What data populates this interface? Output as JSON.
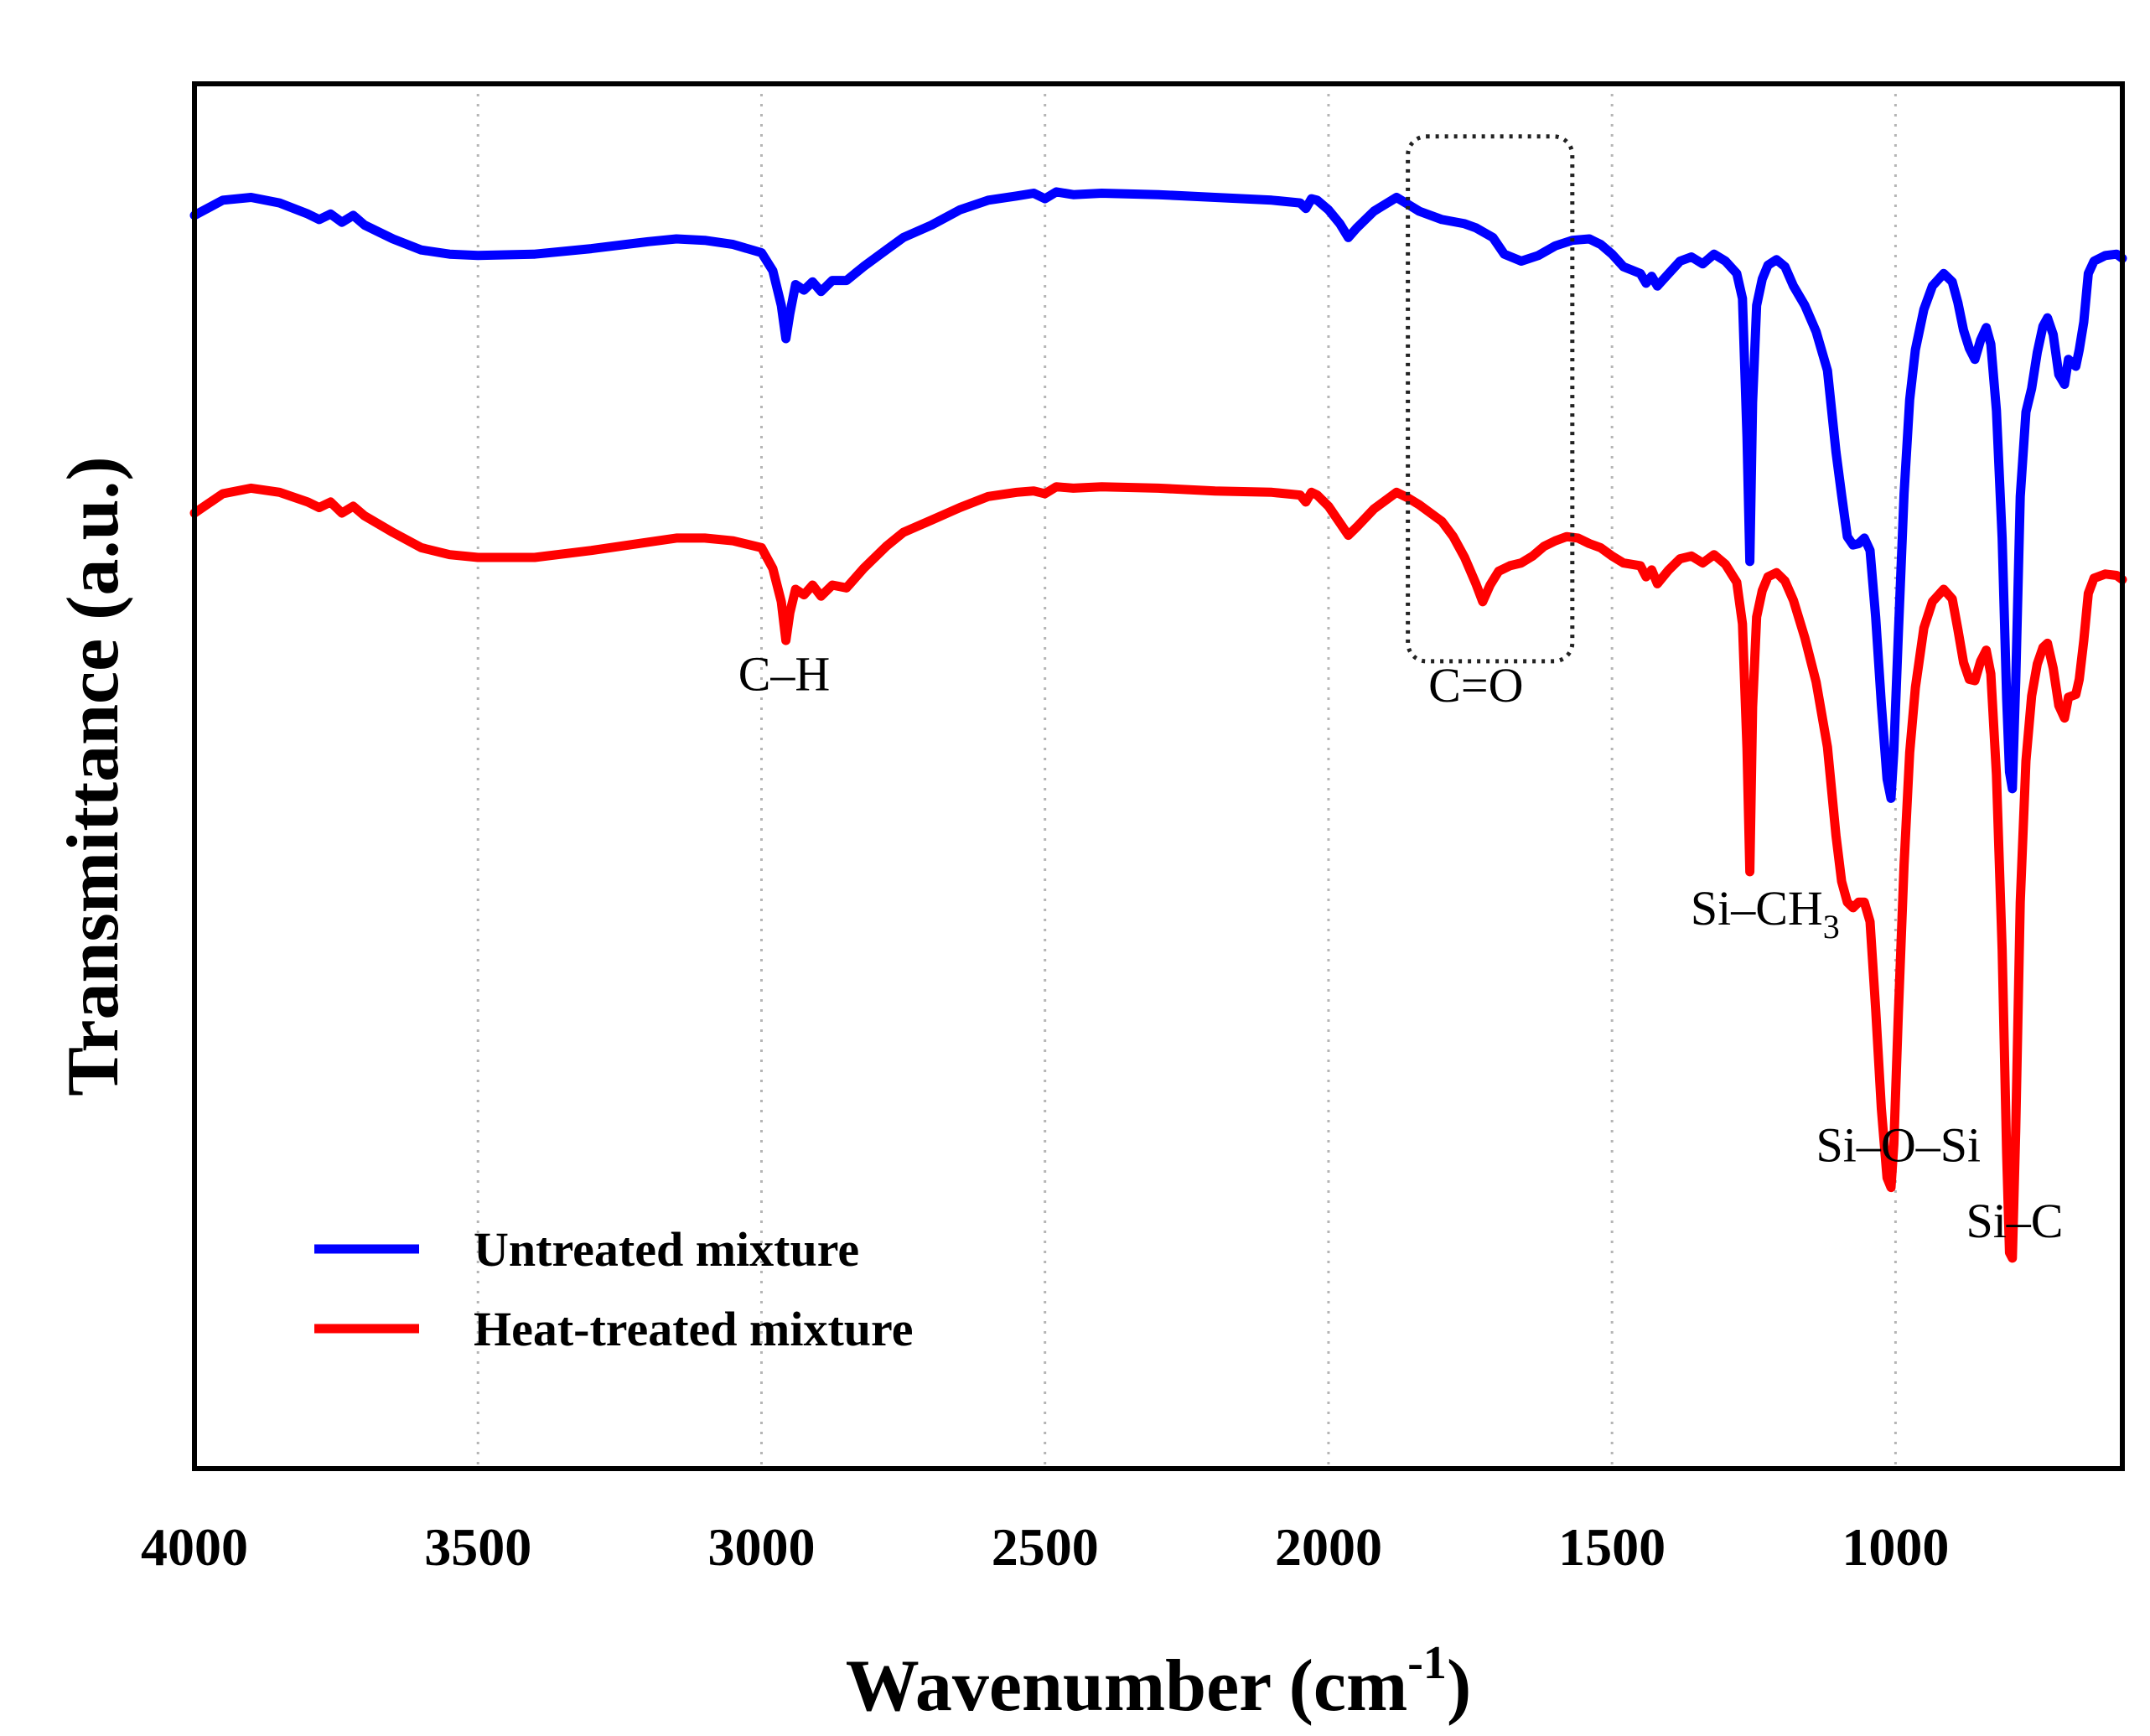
{
  "chart_data": {
    "type": "line",
    "title": "",
    "xlabel": "Wavenumber (cm",
    "xlabel_sup": "-1",
    "xlabel_close": ")",
    "ylabel": "Transmittance (a.u.)",
    "xlim": [
      4000,
      600
    ],
    "ylim": [
      0,
      100
    ],
    "x_reversed": true,
    "grid": "vertical dotted",
    "x_ticks": [
      4000,
      3500,
      3000,
      2500,
      2000,
      1500,
      1000
    ],
    "x_tick_labels": [
      "4000",
      "3500",
      "3000",
      "2500",
      "2000",
      "1500",
      "1000"
    ],
    "legend_position": "bottom-left",
    "series": [
      {
        "name": "Untreated mixture",
        "color": "#0000ff",
        "points": [
          [
            4000,
            90.5
          ],
          [
            3950,
            91.6
          ],
          [
            3900,
            91.8
          ],
          [
            3850,
            91.4
          ],
          [
            3800,
            90.6
          ],
          [
            3780,
            90.2
          ],
          [
            3760,
            90.6
          ],
          [
            3740,
            90.0
          ],
          [
            3720,
            90.5
          ],
          [
            3700,
            89.8
          ],
          [
            3650,
            88.8
          ],
          [
            3600,
            88.0
          ],
          [
            3550,
            87.7
          ],
          [
            3500,
            87.6
          ],
          [
            3400,
            87.7
          ],
          [
            3300,
            88.1
          ],
          [
            3200,
            88.6
          ],
          [
            3150,
            88.8
          ],
          [
            3100,
            88.7
          ],
          [
            3050,
            88.4
          ],
          [
            3000,
            87.8
          ],
          [
            2980,
            86.5
          ],
          [
            2965,
            84.0
          ],
          [
            2957,
            81.6
          ],
          [
            2950,
            83.4
          ],
          [
            2940,
            85.5
          ],
          [
            2925,
            85.1
          ],
          [
            2910,
            85.7
          ],
          [
            2895,
            85.0
          ],
          [
            2875,
            85.8
          ],
          [
            2850,
            85.8
          ],
          [
            2820,
            86.8
          ],
          [
            2780,
            88.0
          ],
          [
            2750,
            88.9
          ],
          [
            2700,
            89.8
          ],
          [
            2650,
            90.9
          ],
          [
            2600,
            91.6
          ],
          [
            2550,
            91.9
          ],
          [
            2520,
            92.1
          ],
          [
            2500,
            91.7
          ],
          [
            2480,
            92.2
          ],
          [
            2450,
            92.0
          ],
          [
            2400,
            92.1
          ],
          [
            2300,
            92.0
          ],
          [
            2200,
            91.8
          ],
          [
            2100,
            91.6
          ],
          [
            2050,
            91.4
          ],
          [
            2040,
            91.0
          ],
          [
            2030,
            91.7
          ],
          [
            2020,
            91.6
          ],
          [
            2000,
            90.9
          ],
          [
            1980,
            89.9
          ],
          [
            1965,
            88.9
          ],
          [
            1950,
            89.6
          ],
          [
            1920,
            90.8
          ],
          [
            1880,
            91.8
          ],
          [
            1860,
            91.3
          ],
          [
            1840,
            90.8
          ],
          [
            1800,
            90.2
          ],
          [
            1760,
            89.9
          ],
          [
            1740,
            89.6
          ],
          [
            1710,
            88.9
          ],
          [
            1690,
            87.7
          ],
          [
            1660,
            87.2
          ],
          [
            1630,
            87.6
          ],
          [
            1600,
            88.3
          ],
          [
            1570,
            88.7
          ],
          [
            1540,
            88.8
          ],
          [
            1520,
            88.4
          ],
          [
            1500,
            87.7
          ],
          [
            1480,
            86.8
          ],
          [
            1450,
            86.3
          ],
          [
            1440,
            85.6
          ],
          [
            1430,
            86.1
          ],
          [
            1420,
            85.4
          ],
          [
            1400,
            86.3
          ],
          [
            1380,
            87.2
          ],
          [
            1360,
            87.5
          ],
          [
            1340,
            87.0
          ],
          [
            1320,
            87.7
          ],
          [
            1300,
            87.2
          ],
          [
            1280,
            86.3
          ],
          [
            1270,
            84.5
          ],
          [
            1262,
            74.5
          ],
          [
            1257,
            65.5
          ],
          [
            1252,
            77.0
          ],
          [
            1245,
            84.0
          ],
          [
            1235,
            85.9
          ],
          [
            1225,
            86.9
          ],
          [
            1210,
            87.3
          ],
          [
            1195,
            86.8
          ],
          [
            1180,
            85.4
          ],
          [
            1160,
            84.0
          ],
          [
            1140,
            82.1
          ],
          [
            1120,
            79.3
          ],
          [
            1105,
            73.4
          ],
          [
            1095,
            70.3
          ],
          [
            1085,
            67.3
          ],
          [
            1075,
            66.7
          ],
          [
            1065,
            66.8
          ],
          [
            1055,
            67.2
          ],
          [
            1045,
            66.3
          ],
          [
            1035,
            61.5
          ],
          [
            1025,
            55.2
          ],
          [
            1015,
            49.8
          ],
          [
            1008,
            48.4
          ],
          [
            1003,
            51.8
          ],
          [
            995,
            60.3
          ],
          [
            985,
            70.4
          ],
          [
            975,
            77.2
          ],
          [
            965,
            80.8
          ],
          [
            950,
            83.7
          ],
          [
            935,
            85.4
          ],
          [
            915,
            86.3
          ],
          [
            900,
            85.7
          ],
          [
            890,
            84.2
          ],
          [
            880,
            82.2
          ],
          [
            870,
            80.9
          ],
          [
            860,
            80.1
          ],
          [
            850,
            81.5
          ],
          [
            840,
            82.4
          ],
          [
            832,
            81.2
          ],
          [
            822,
            76.4
          ],
          [
            812,
            67.2
          ],
          [
            804,
            55.6
          ],
          [
            799,
            50.3
          ],
          [
            794,
            49.1
          ],
          [
            788,
            56.8
          ],
          [
            780,
            70.2
          ],
          [
            770,
            76.3
          ],
          [
            760,
            78.0
          ],
          [
            750,
            80.6
          ],
          [
            740,
            82.5
          ],
          [
            732,
            83.1
          ],
          [
            722,
            81.9
          ],
          [
            712,
            79.0
          ],
          [
            702,
            78.3
          ],
          [
            695,
            80.1
          ],
          [
            682,
            79.6
          ],
          [
            676,
            80.8
          ],
          [
            668,
            82.8
          ],
          [
            660,
            86.3
          ],
          [
            650,
            87.2
          ],
          [
            630,
            87.6
          ],
          [
            610,
            87.7
          ],
          [
            600,
            87.4
          ]
        ]
      },
      {
        "name": "Heat-treated mixture",
        "color": "#ff0000",
        "points": [
          [
            4000,
            69.0
          ],
          [
            3950,
            70.4
          ],
          [
            3900,
            70.8
          ],
          [
            3850,
            70.5
          ],
          [
            3800,
            69.8
          ],
          [
            3780,
            69.4
          ],
          [
            3760,
            69.8
          ],
          [
            3740,
            69.0
          ],
          [
            3720,
            69.5
          ],
          [
            3700,
            68.8
          ],
          [
            3650,
            67.6
          ],
          [
            3600,
            66.5
          ],
          [
            3550,
            66.0
          ],
          [
            3500,
            65.8
          ],
          [
            3400,
            65.8
          ],
          [
            3300,
            66.3
          ],
          [
            3200,
            66.9
          ],
          [
            3150,
            67.2
          ],
          [
            3100,
            67.2
          ],
          [
            3050,
            67.0
          ],
          [
            3000,
            66.5
          ],
          [
            2980,
            65.0
          ],
          [
            2965,
            62.6
          ],
          [
            2957,
            59.8
          ],
          [
            2950,
            61.8
          ],
          [
            2940,
            63.5
          ],
          [
            2925,
            63.1
          ],
          [
            2910,
            63.8
          ],
          [
            2895,
            63.0
          ],
          [
            2875,
            63.8
          ],
          [
            2850,
            63.6
          ],
          [
            2820,
            65.0
          ],
          [
            2780,
            66.6
          ],
          [
            2750,
            67.6
          ],
          [
            2700,
            68.5
          ],
          [
            2650,
            69.4
          ],
          [
            2600,
            70.2
          ],
          [
            2550,
            70.5
          ],
          [
            2520,
            70.6
          ],
          [
            2500,
            70.4
          ],
          [
            2480,
            70.9
          ],
          [
            2450,
            70.8
          ],
          [
            2400,
            70.9
          ],
          [
            2300,
            70.8
          ],
          [
            2200,
            70.6
          ],
          [
            2100,
            70.5
          ],
          [
            2050,
            70.3
          ],
          [
            2040,
            69.8
          ],
          [
            2030,
            70.5
          ],
          [
            2020,
            70.3
          ],
          [
            2000,
            69.5
          ],
          [
            1980,
            68.3
          ],
          [
            1965,
            67.4
          ],
          [
            1950,
            68.0
          ],
          [
            1920,
            69.3
          ],
          [
            1880,
            70.5
          ],
          [
            1860,
            70.1
          ],
          [
            1840,
            69.6
          ],
          [
            1800,
            68.4
          ],
          [
            1780,
            67.3
          ],
          [
            1760,
            65.8
          ],
          [
            1740,
            63.9
          ],
          [
            1728,
            62.6
          ],
          [
            1715,
            63.8
          ],
          [
            1700,
            64.8
          ],
          [
            1680,
            65.2
          ],
          [
            1660,
            65.4
          ],
          [
            1640,
            65.9
          ],
          [
            1620,
            66.6
          ],
          [
            1600,
            67.0
          ],
          [
            1580,
            67.3
          ],
          [
            1560,
            67.2
          ],
          [
            1540,
            66.8
          ],
          [
            1520,
            66.5
          ],
          [
            1500,
            65.9
          ],
          [
            1480,
            65.4
          ],
          [
            1450,
            65.2
          ],
          [
            1440,
            64.4
          ],
          [
            1430,
            64.9
          ],
          [
            1420,
            63.9
          ],
          [
            1400,
            64.9
          ],
          [
            1380,
            65.7
          ],
          [
            1360,
            65.9
          ],
          [
            1340,
            65.4
          ],
          [
            1320,
            66.0
          ],
          [
            1300,
            65.3
          ],
          [
            1280,
            64.0
          ],
          [
            1270,
            61.0
          ],
          [
            1262,
            52.0
          ],
          [
            1257,
            43.1
          ],
          [
            1252,
            55.0
          ],
          [
            1245,
            61.5
          ],
          [
            1235,
            63.4
          ],
          [
            1225,
            64.4
          ],
          [
            1210,
            64.7
          ],
          [
            1195,
            64.1
          ],
          [
            1180,
            62.7
          ],
          [
            1160,
            60.0
          ],
          [
            1140,
            56.8
          ],
          [
            1120,
            52.1
          ],
          [
            1105,
            45.7
          ],
          [
            1095,
            42.4
          ],
          [
            1085,
            40.9
          ],
          [
            1075,
            40.5
          ],
          [
            1065,
            40.9
          ],
          [
            1055,
            40.9
          ],
          [
            1045,
            39.5
          ],
          [
            1035,
            33.2
          ],
          [
            1025,
            26.0
          ],
          [
            1015,
            21.0
          ],
          [
            1008,
            20.3
          ],
          [
            1003,
            23.4
          ],
          [
            995,
            32.9
          ],
          [
            985,
            43.6
          ],
          [
            975,
            51.7
          ],
          [
            965,
            56.4
          ],
          [
            950,
            60.7
          ],
          [
            935,
            62.6
          ],
          [
            915,
            63.5
          ],
          [
            900,
            62.8
          ],
          [
            890,
            60.6
          ],
          [
            880,
            58.2
          ],
          [
            870,
            57.0
          ],
          [
            860,
            56.9
          ],
          [
            850,
            58.3
          ],
          [
            840,
            59.1
          ],
          [
            832,
            57.4
          ],
          [
            822,
            50.1
          ],
          [
            812,
            37.5
          ],
          [
            804,
            22.7
          ],
          [
            799,
            15.6
          ],
          [
            794,
            15.2
          ],
          [
            788,
            24.4
          ],
          [
            780,
            40.9
          ],
          [
            770,
            51.1
          ],
          [
            760,
            55.8
          ],
          [
            750,
            58.1
          ],
          [
            740,
            59.3
          ],
          [
            732,
            59.6
          ],
          [
            722,
            57.8
          ],
          [
            712,
            55.1
          ],
          [
            702,
            54.2
          ],
          [
            695,
            55.7
          ],
          [
            682,
            55.9
          ],
          [
            676,
            57.0
          ],
          [
            668,
            59.8
          ],
          [
            660,
            63.2
          ],
          [
            650,
            64.3
          ],
          [
            630,
            64.6
          ],
          [
            610,
            64.5
          ],
          [
            600,
            64.2
          ]
        ]
      }
    ],
    "annotations": [
      {
        "text": "C–H",
        "sub": "",
        "x": 2960,
        "y": 56.2
      },
      {
        "text": "C=O",
        "sub": "",
        "x": 1740,
        "y": 55.4
      },
      {
        "text": "Si–CH",
        "sub": "3",
        "x": 1230,
        "y": 39.3
      },
      {
        "text": "Si–O–Si",
        "sub": "",
        "x": 995,
        "y": 22.2
      },
      {
        "text": "Si–C",
        "sub": "",
        "x": 790,
        "y": 16.7
      }
    ],
    "highlight_box": {
      "label": "C=O region",
      "x_from": 1860,
      "x_to": 1570,
      "y_from": 96.2,
      "y_to": 58.3
    }
  }
}
